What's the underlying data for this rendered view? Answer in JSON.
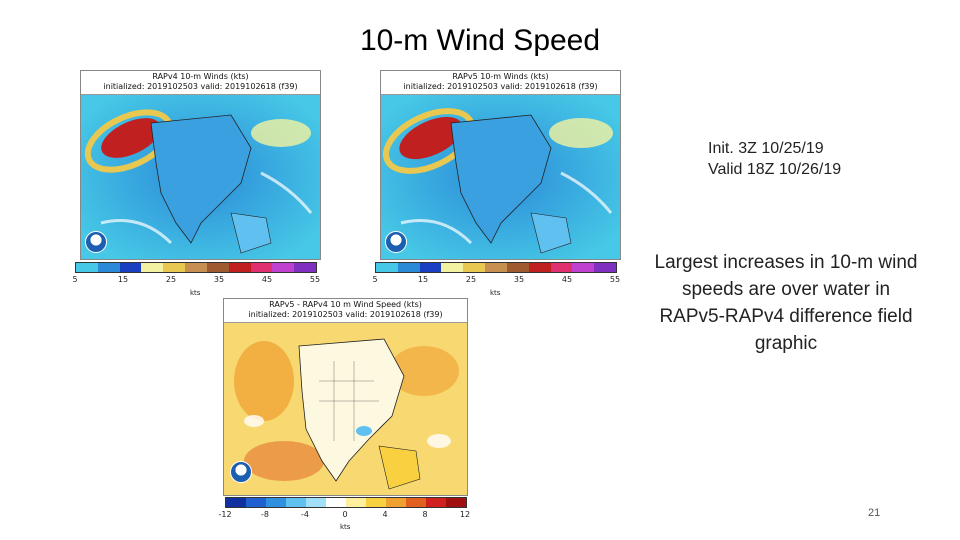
{
  "slide": {
    "title": "10-m Wind Speed",
    "init_line": "Init. 3Z 10/25/19",
    "valid_line": "Valid 18Z 10/26/19",
    "caption": "Largest increases in 10-m wind speeds are over water in RAPv5-RAPv4 difference field graphic",
    "page_number": "21"
  },
  "maps": [
    {
      "header_line1": "RAPv4 10-m Winds (kts)",
      "header_line2": "initialized: 2019102503 valid: 2019102618 (f39)",
      "units": "kts",
      "tick_labels": [
        "5",
        "15",
        "25",
        "35",
        "45",
        "55"
      ],
      "colors": [
        "#46c8e6",
        "#2b8ad8",
        "#1a3fc0",
        "#f2f2a0",
        "#e8c850",
        "#c89050",
        "#a05a30",
        "#c02020",
        "#e03070",
        "#c040d0",
        "#8030c0"
      ]
    },
    {
      "header_line1": "RAPv5 10-m Winds (kts)",
      "header_line2": "initialized: 2019102503 valid: 2019102618 (f39)",
      "units": "kts",
      "tick_labels": [
        "5",
        "15",
        "25",
        "35",
        "45",
        "55"
      ],
      "colors": [
        "#46c8e6",
        "#2b8ad8",
        "#1a3fc0",
        "#f2f2a0",
        "#e8c850",
        "#c89050",
        "#a05a30",
        "#c02020",
        "#e03070",
        "#c040d0",
        "#8030c0"
      ]
    },
    {
      "header_line1": "RAPv5 - RAPv4 10 m Wind Speed (kts)",
      "header_line2": "initialized: 2019102503 valid: 2019102618 (f39)",
      "units": "kts",
      "tick_labels": [
        "-12",
        "-8",
        "-4",
        "0",
        "4",
        "8",
        "12"
      ],
      "colors": [
        "#1030a0",
        "#2060d0",
        "#3090e0",
        "#60c0f0",
        "#a0e0f8",
        "#ffffff",
        "#fff0a0",
        "#f8d040",
        "#f0a030",
        "#e06020",
        "#d02020",
        "#a01010"
      ]
    }
  ]
}
